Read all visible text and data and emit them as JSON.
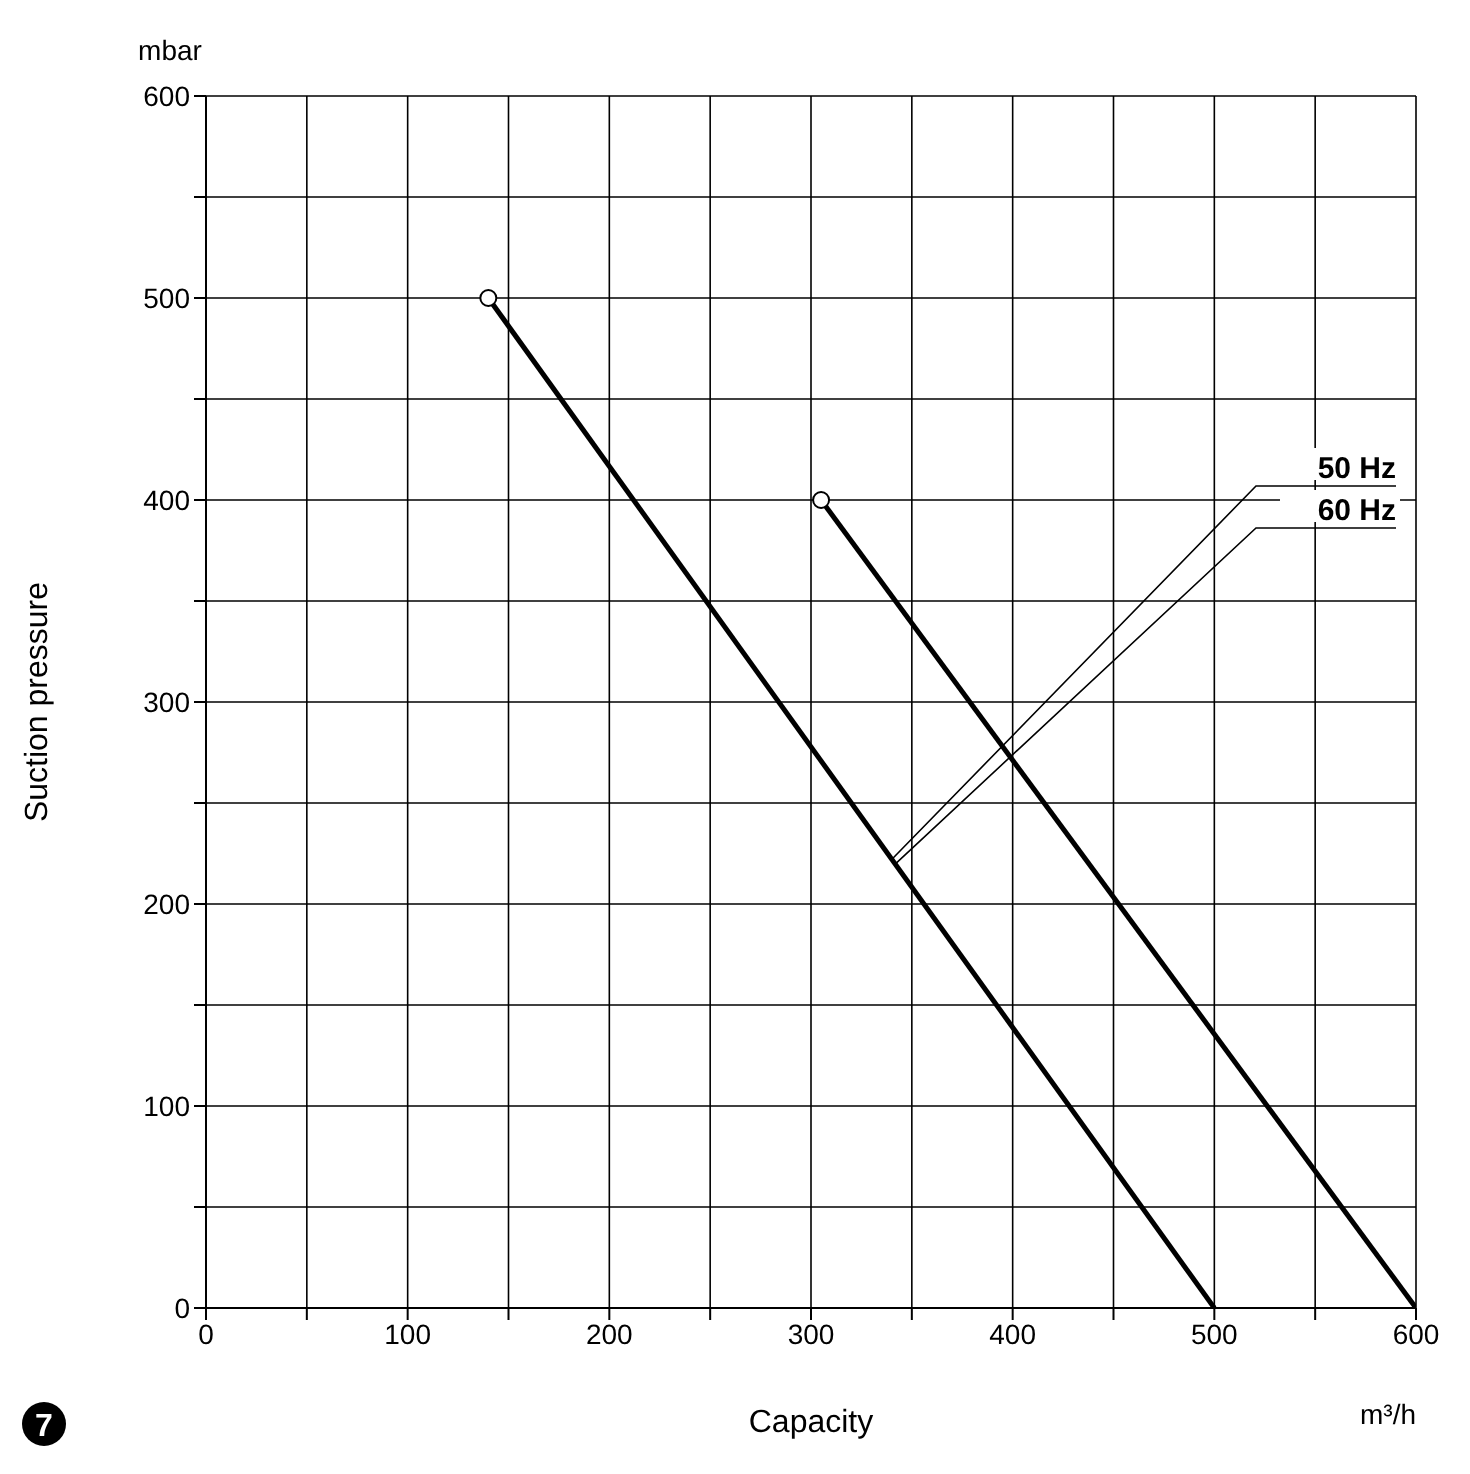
{
  "chart_data": {
    "type": "line",
    "xlabel": "Capacity",
    "ylabel": "Suction pressure",
    "series": [
      {
        "color": "#000000",
        "x": [
          140,
          500
        ],
        "values": [
          500,
          0
        ]
      },
      {
        "color": "#000000",
        "x": [
          305,
          600
        ],
        "values": [
          400,
          0
        ]
      }
    ],
    "xlim": [
      0,
      600
    ],
    "ylim": [
      0,
      600
    ],
    "xticks": [
      0,
      {
        "value": 50,
        "label": null
      },
      100,
      {
        "value": 150,
        "label": null
      },
      200,
      {
        "value": 250,
        "label": null
      },
      300,
      {
        "value": 350,
        "label": null
      },
      400,
      {
        "value": 450,
        "label": null
      },
      500,
      {
        "value": 550,
        "label": null
      },
      600
    ],
    "yticks": [
      0,
      {
        "value": 50,
        "label": null
      },
      100,
      {
        "value": 150,
        "label": null
      },
      200,
      {
        "value": 250,
        "label": null
      },
      300,
      {
        "value": 350,
        "label": null
      },
      400,
      {
        "value": 450,
        "label": null
      },
      500,
      {
        "value": 550,
        "label": null
      },
      600
    ],
    "grid": true,
    "marker": "circle",
    "line_style": "solid",
    "annotations": [
      {
        "text": "50 Hz",
        "x": 340,
        "y": 222
      },
      {
        "text": "60 Hz",
        "x": 342,
        "y": 220
      },
      "mbar",
      "m³/h",
      "7"
    ]
  }
}
